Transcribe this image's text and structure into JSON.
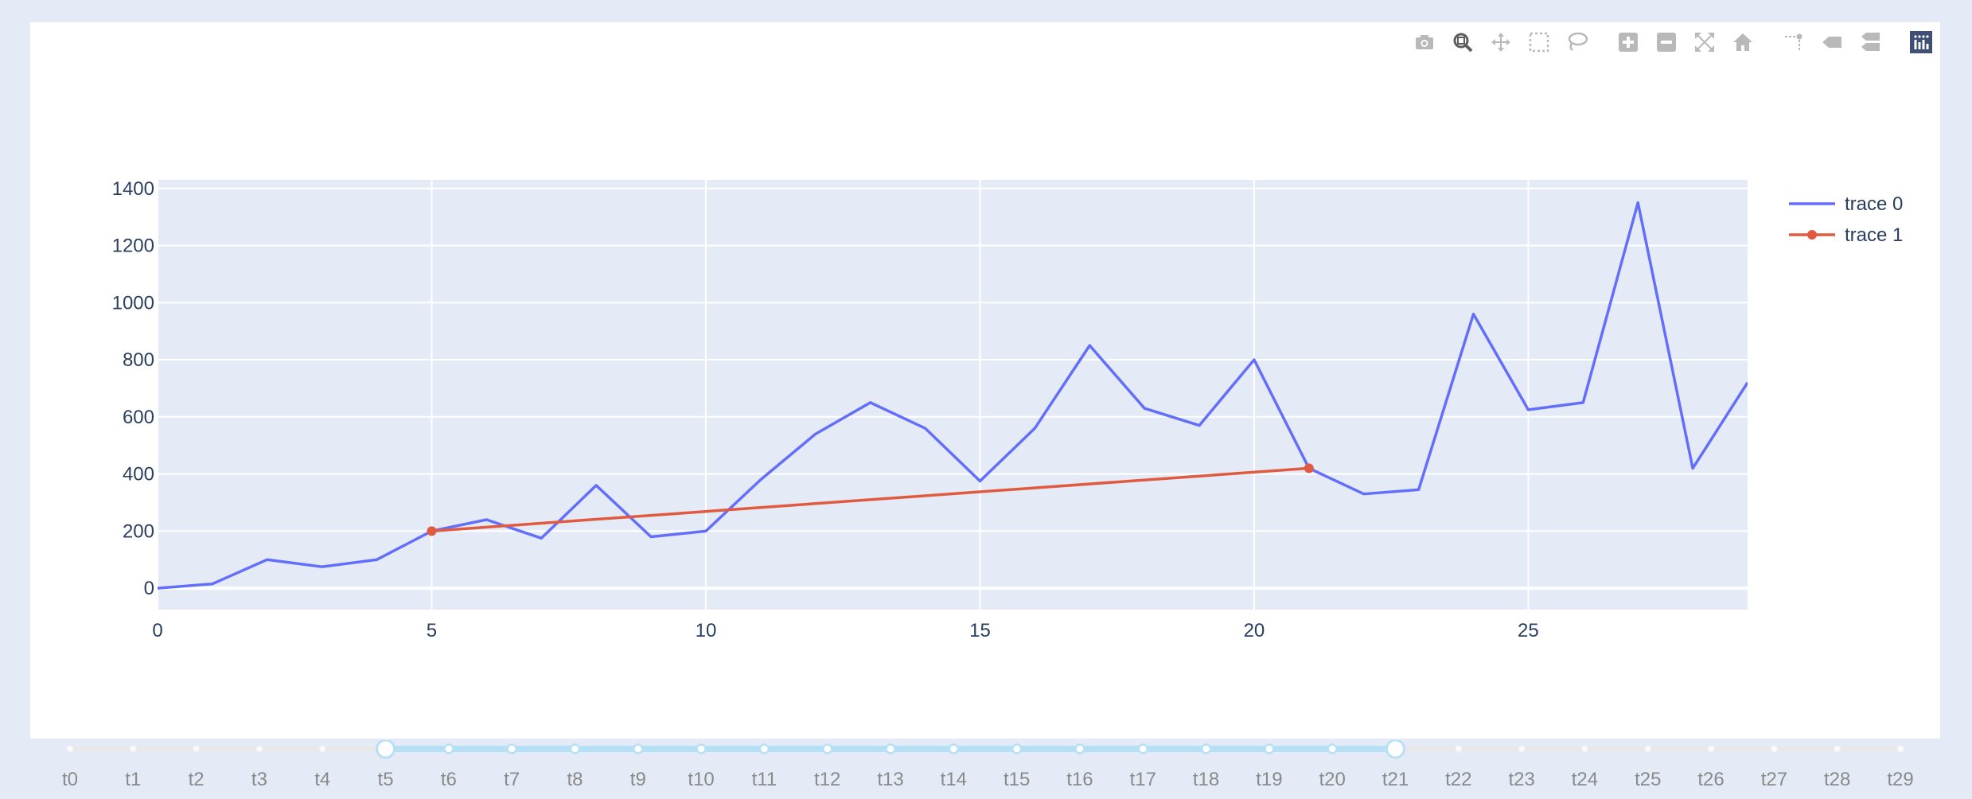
{
  "modebar": {
    "buttons": [
      {
        "name": "camera-icon",
        "title": "Download plot as a png"
      },
      {
        "name": "zoom-icon",
        "title": "Zoom",
        "active": true
      },
      {
        "name": "pan-icon",
        "title": "Pan"
      },
      {
        "name": "box-select-icon",
        "title": "Box Select"
      },
      {
        "name": "lasso-select-icon",
        "title": "Lasso Select"
      },
      {
        "name": "zoom-in-icon",
        "title": "Zoom in"
      },
      {
        "name": "zoom-out-icon",
        "title": "Zoom out"
      },
      {
        "name": "autoscale-icon",
        "title": "Autoscale"
      },
      {
        "name": "reset-axes-icon",
        "title": "Reset axes"
      },
      {
        "name": "spike-lines-icon",
        "title": "Toggle Spike Lines"
      },
      {
        "name": "hover-closest-icon",
        "title": "Show closest data on hover"
      },
      {
        "name": "hover-compare-icon",
        "title": "Compare data on hover"
      },
      {
        "name": "plotly-logo-icon",
        "title": "Produced with Plotly"
      }
    ]
  },
  "colors": {
    "plot_bg": "#e5ebf6",
    "grid": "#ffffff",
    "text": "#2a3f5f",
    "trace0": "#636efa",
    "trace1": "#e05a3f",
    "slider_active": "#b6e0f5",
    "slider_inactive": "#e8e8e8"
  },
  "chart_data": {
    "type": "line",
    "title": "",
    "xlabel": "",
    "ylabel": "",
    "xlim": [
      0,
      29
    ],
    "ylim": [
      -75,
      1430
    ],
    "xticks": [
      0,
      5,
      10,
      15,
      20,
      25
    ],
    "yticks": [
      0,
      200,
      400,
      600,
      800,
      1000,
      1200,
      1400
    ],
    "grid": true,
    "legend": "top-right",
    "series": [
      {
        "name": "trace 0",
        "mode": "lines",
        "x": [
          0,
          1,
          2,
          3,
          4,
          5,
          6,
          7,
          8,
          9,
          10,
          11,
          12,
          13,
          14,
          15,
          16,
          17,
          18,
          19,
          20,
          21,
          22,
          23,
          24,
          25,
          26,
          27,
          28,
          29
        ],
        "y": [
          0,
          15,
          100,
          75,
          100,
          200,
          240,
          175,
          360,
          180,
          200,
          380,
          540,
          650,
          560,
          375,
          560,
          850,
          630,
          570,
          800,
          420,
          330,
          345,
          960,
          625,
          650,
          1350,
          420,
          720
        ]
      },
      {
        "name": "trace 1",
        "mode": "lines+markers",
        "x": [
          5,
          21
        ],
        "y": [
          200,
          420
        ]
      }
    ]
  },
  "slider": {
    "steps": [
      "t0",
      "t1",
      "t2",
      "t3",
      "t4",
      "t5",
      "t6",
      "t7",
      "t8",
      "t9",
      "t10",
      "t11",
      "t12",
      "t13",
      "t14",
      "t15",
      "t16",
      "t17",
      "t18",
      "t19",
      "t20",
      "t21",
      "t22",
      "t23",
      "t24",
      "t25",
      "t26",
      "t27",
      "t28",
      "t29"
    ],
    "range_start": 5,
    "range_end": 21
  }
}
